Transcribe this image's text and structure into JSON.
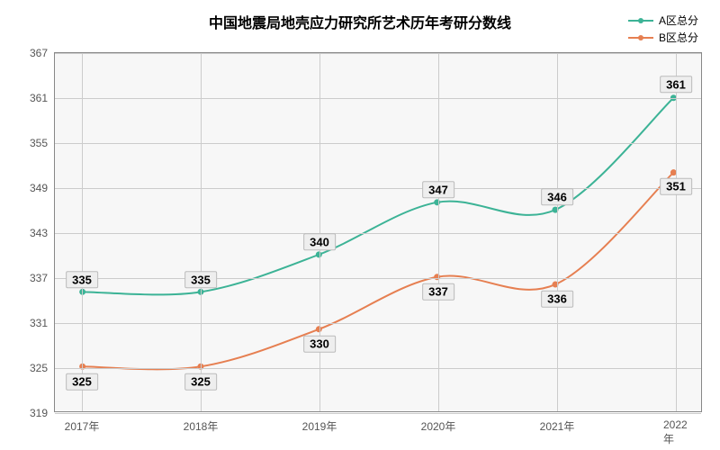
{
  "chart": {
    "type": "line",
    "title": "中国地震局地壳应力研究所艺术历年考研分数线",
    "title_fontsize": 16,
    "background_color": "#ffffff",
    "plot_background_color": "#f7f7f7",
    "grid_color": "#cccccc",
    "border_color": "#888888",
    "label_box_bg": "#eeeeee",
    "label_box_border": "#bbbbbb",
    "x": {
      "categories": [
        "2017年",
        "2018年",
        "2019年",
        "2020年",
        "2021年",
        "2022年"
      ],
      "label_fontsize": 12
    },
    "y": {
      "min": 319,
      "max": 367,
      "ticks": [
        319,
        325,
        331,
        337,
        343,
        349,
        355,
        361,
        367
      ],
      "label_fontsize": 12
    },
    "series": [
      {
        "name": "A区总分",
        "color": "#3cb396",
        "marker_color": "#3cb396",
        "line_width": 2,
        "values": [
          335,
          335,
          340,
          347,
          346,
          361
        ]
      },
      {
        "name": "B区总分",
        "color": "#e67f51",
        "marker_color": "#e67f51",
        "line_width": 2,
        "values": [
          325,
          325,
          330,
          337,
          336,
          351
        ]
      }
    ],
    "legend": {
      "position": "top-right",
      "fontsize": 12
    }
  }
}
